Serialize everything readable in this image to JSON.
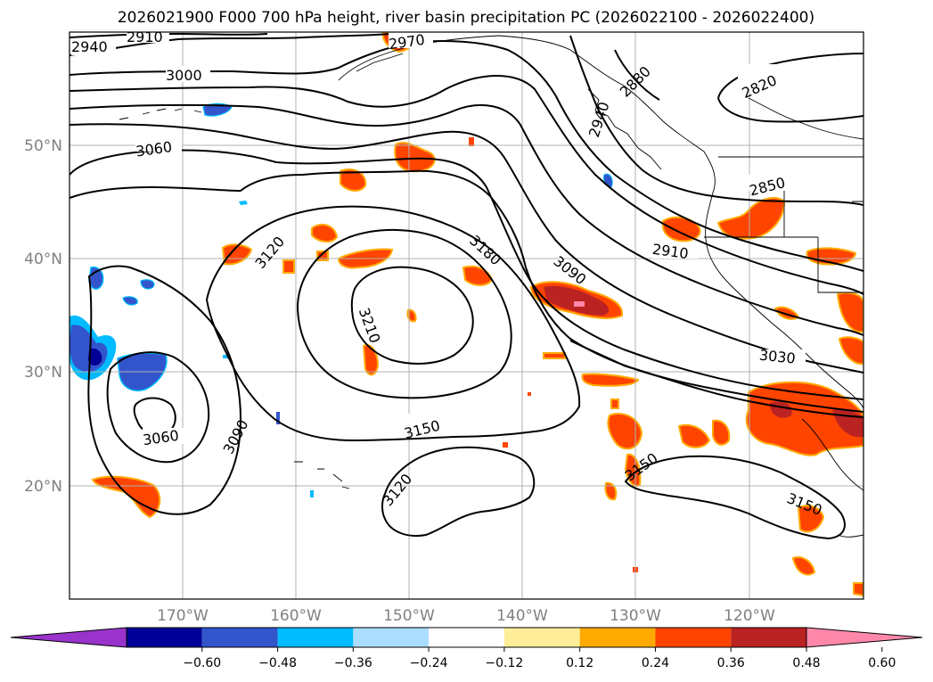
{
  "title": "2026021900 F000 700 hPa height, river basin precipitation PC (2026022100 - 2026022400)",
  "map": {
    "lon_labels": [
      "170°W",
      "160°W",
      "150°W",
      "140°W",
      "130°W",
      "120°W"
    ],
    "lat_labels": [
      "50°N",
      "40°N",
      "30°N",
      "20°N"
    ],
    "contour_labels": [
      "2910",
      "2940",
      "2970",
      "3000",
      "3060",
      "3120",
      "3180",
      "3090",
      "3210",
      "3060",
      "3090",
      "3150",
      "3120",
      "2940",
      "2820",
      "2850",
      "2910",
      "3030",
      "3150",
      "3150",
      "2880"
    ],
    "colors": {
      "neg_extreme": "#9933cc",
      "neg_060": "#000099",
      "neg_048": "#3355cc",
      "neg_036": "#00bbff",
      "neg_024": "#aaddff",
      "near_zero": "#ffffff",
      "pos_012": "#ffee99",
      "pos_024": "#ffaa00",
      "pos_036": "#ff4400",
      "pos_048": "#bb2222",
      "pos_extreme": "#ff88aa"
    }
  },
  "colorbar": {
    "ticks": [
      "−0.60",
      "−0.48",
      "−0.36",
      "−0.24",
      "−0.12",
      "0.12",
      "0.24",
      "0.36",
      "0.48",
      "0.60"
    ],
    "bins": [
      "#9933cc",
      "#000099",
      "#3355cc",
      "#00bbff",
      "#aaddff",
      "#ffffff",
      "#ffee99",
      "#ffaa00",
      "#ff4400",
      "#bb2222",
      "#ff88aa"
    ]
  }
}
